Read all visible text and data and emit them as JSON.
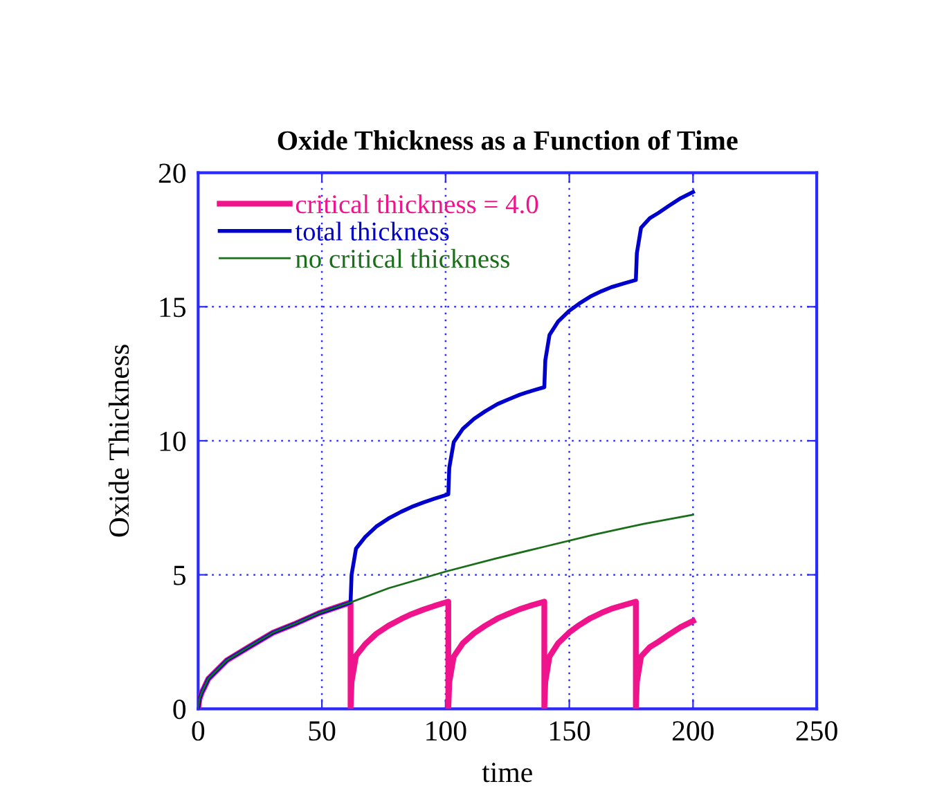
{
  "chart_data": {
    "type": "line",
    "title": "Oxide Thickness as a Function of Time",
    "xlabel": "time",
    "ylabel": "Oxide Thickness",
    "xlim": [
      0,
      250
    ],
    "xticks": [
      0,
      50,
      100,
      150,
      200,
      250
    ],
    "ylim": [
      0,
      20
    ],
    "yticks": [
      0,
      5,
      10,
      15,
      20
    ],
    "grid": true,
    "legend": "top left",
    "marker": "none",
    "line_style": "solid",
    "series": [
      {
        "name": "critical thickness = 4.0",
        "color": "#f0148c",
        "x": [
          0,
          0.5,
          1.5,
          2.5,
          4.1,
          11.6,
          20.9,
          30.2,
          39.6,
          48.9,
          61.6,
          61.6,
          62.0,
          63.8,
          67.5,
          72,
          76.9,
          82,
          86.2,
          91,
          95.5,
          101.1,
          101.1,
          101.5,
          103.3,
          107,
          111.5,
          116,
          121,
          125.5,
          130,
          135,
          139.9,
          139.9,
          140.3,
          142,
          145.5,
          150,
          154,
          158.5,
          163,
          167,
          172,
          176.9,
          176.9,
          177.3,
          179,
          182.5,
          186,
          190,
          195,
          200
        ],
        "values": [
          0,
          0.36,
          0.62,
          0.8,
          1.12,
          1.81,
          2.33,
          2.84,
          3.19,
          3.57,
          3.97,
          0,
          1.0,
          1.98,
          2.41,
          2.8,
          3.1,
          3.35,
          3.53,
          3.7,
          3.84,
          4.0,
          0,
          1.0,
          1.95,
          2.45,
          2.82,
          3.1,
          3.37,
          3.55,
          3.72,
          3.87,
          4.0,
          0,
          1.0,
          1.95,
          2.45,
          2.85,
          3.12,
          3.38,
          3.58,
          3.73,
          3.87,
          4.0,
          0,
          1.0,
          1.95,
          2.3,
          2.5,
          2.75,
          3.05,
          3.28
        ]
      },
      {
        "name": "total thickness",
        "color": "#0000cc",
        "x": [
          0,
          0.5,
          1.5,
          2.5,
          4.1,
          11.6,
          20.9,
          30.2,
          39.6,
          48.9,
          61.6,
          62.0,
          63.8,
          67.5,
          72,
          76.9,
          82,
          86.2,
          91,
          95.5,
          101.1,
          101.5,
          103.3,
          107,
          111.5,
          116,
          121,
          125.5,
          130,
          135,
          139.9,
          140.3,
          142,
          145.5,
          150,
          154,
          158.5,
          163,
          167,
          172,
          176.9,
          177.3,
          179,
          182.5,
          186,
          190,
          195,
          200
        ],
        "values": [
          0,
          0.36,
          0.62,
          0.8,
          1.12,
          1.81,
          2.33,
          2.84,
          3.19,
          3.57,
          3.97,
          5.0,
          5.98,
          6.41,
          6.8,
          7.1,
          7.35,
          7.53,
          7.7,
          7.84,
          8.0,
          9.0,
          9.95,
          10.45,
          10.82,
          11.1,
          11.37,
          11.55,
          11.72,
          11.87,
          12.0,
          13.0,
          13.95,
          14.45,
          14.85,
          15.12,
          15.38,
          15.58,
          15.73,
          15.87,
          16.0,
          17.0,
          17.95,
          18.3,
          18.5,
          18.75,
          19.05,
          19.28
        ]
      },
      {
        "name": "no critical thickness",
        "color": "#1a6e1a",
        "x": [
          0,
          0.5,
          1.5,
          2.5,
          4.1,
          11.6,
          20.9,
          30.2,
          39.6,
          48.9,
          61.6,
          77,
          100,
          120,
          140,
          160,
          180,
          200
        ],
        "values": [
          0,
          0.36,
          0.62,
          0.8,
          1.12,
          1.81,
          2.33,
          2.84,
          3.19,
          3.57,
          3.97,
          4.5,
          5.12,
          5.6,
          6.05,
          6.5,
          6.9,
          7.24
        ]
      }
    ]
  }
}
